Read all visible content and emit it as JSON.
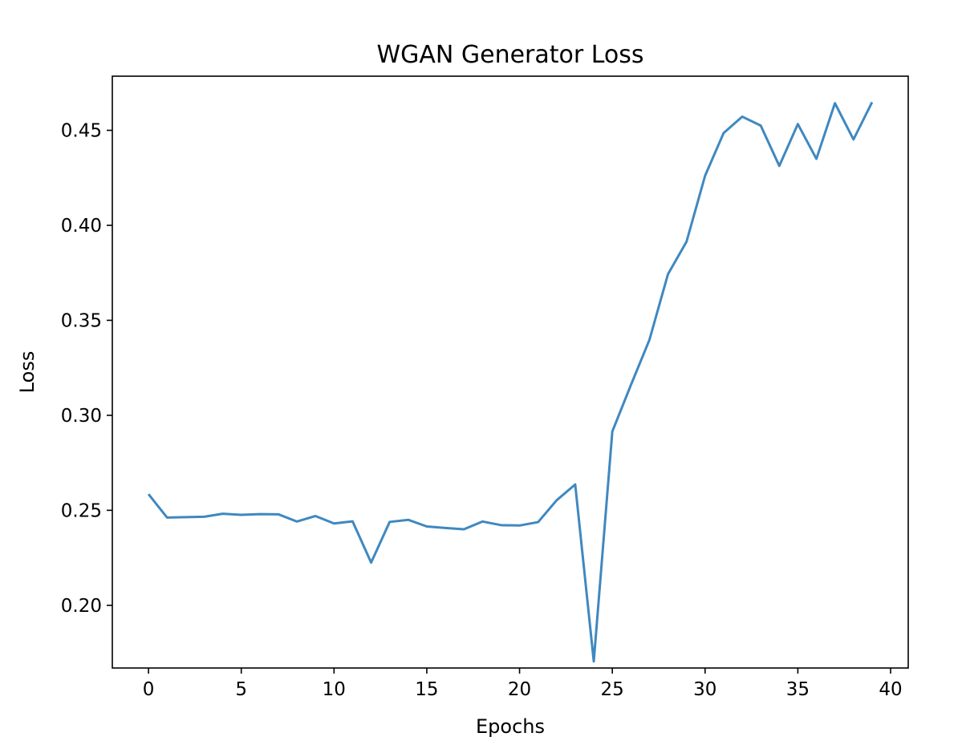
{
  "chart_data": {
    "type": "line",
    "title": "WGAN Generator Loss",
    "xlabel": "Epochs",
    "ylabel": "Loss",
    "xlim": [
      -1.95,
      40.95
    ],
    "ylim": [
      0.167,
      0.4785
    ],
    "x_ticks": [
      0,
      5,
      10,
      15,
      20,
      25,
      30,
      35,
      40
    ],
    "y_ticks": [
      0.2,
      0.25,
      0.3,
      0.35,
      0.4,
      0.45
    ],
    "y_tick_labels": [
      "0.20",
      "0.25",
      "0.30",
      "0.35",
      "0.40",
      "0.45"
    ],
    "grid": false,
    "legend": "none",
    "series": [
      {
        "color": "#3f88c0",
        "x": [
          0,
          1,
          2,
          3,
          4,
          5,
          6,
          7,
          8,
          9,
          10,
          11,
          12,
          13,
          14,
          15,
          16,
          17,
          18,
          19,
          20,
          21,
          22,
          23,
          24,
          25,
          26,
          27,
          28,
          29,
          30,
          31,
          32,
          33,
          34,
          35,
          36,
          37,
          38,
          39
        ],
        "values": [
          0.2585,
          0.2462,
          0.2464,
          0.2466,
          0.2482,
          0.2476,
          0.248,
          0.2479,
          0.2441,
          0.247,
          0.2431,
          0.2442,
          0.2225,
          0.2439,
          0.245,
          0.2415,
          0.2407,
          0.24,
          0.2441,
          0.2422,
          0.242,
          0.2438,
          0.2553,
          0.2636,
          0.1705,
          0.2915,
          0.3159,
          0.3397,
          0.3743,
          0.3914,
          0.4261,
          0.4486,
          0.4572,
          0.4525,
          0.4313,
          0.4533,
          0.435,
          0.4643,
          0.4452,
          0.4648
        ]
      }
    ]
  }
}
